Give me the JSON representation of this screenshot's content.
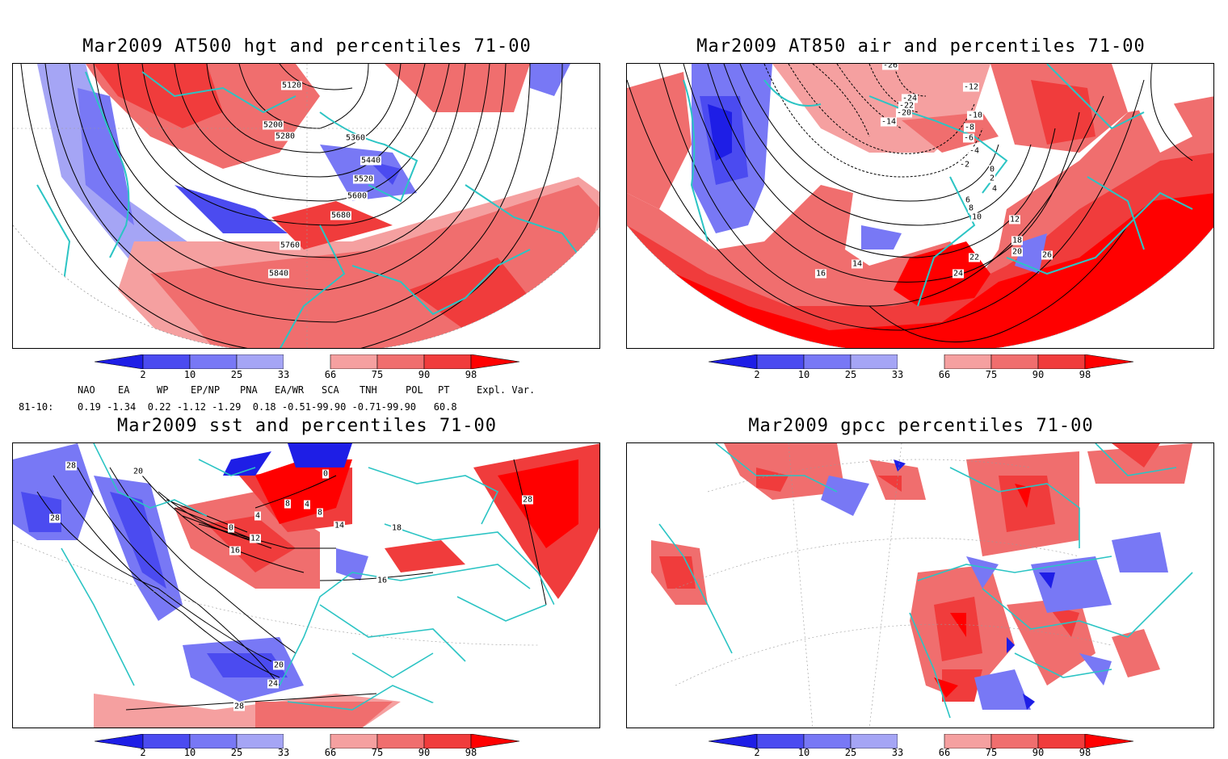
{
  "panels": [
    {
      "id": "hgt",
      "title": "Mar2009 AT500 hgt and percentiles 71-00",
      "contour_labels": [
        "5120",
        "5200",
        "5280",
        "5360",
        "5440",
        "5520",
        "5600",
        "5680",
        "5760",
        "5840"
      ]
    },
    {
      "id": "air",
      "title": "Mar2009 AT850 air and percentiles 71-00",
      "contour_labels": [
        "-26",
        "-24",
        "-22",
        "-20",
        "-14",
        "-12",
        "-10",
        "-8",
        "-6",
        "-4",
        "-2",
        "0",
        "2",
        "4",
        "6",
        "8",
        "10",
        "12",
        "14",
        "16",
        "18",
        "20",
        "22",
        "24",
        "26"
      ]
    },
    {
      "id": "sst",
      "title": "Mar2009 sst and percentiles 71-00",
      "contour_labels": [
        "28",
        "20",
        "28",
        "0",
        "4",
        "8",
        "12",
        "16",
        "0",
        "4",
        "8",
        "14",
        "18",
        "16",
        "20",
        "24",
        "28",
        "28"
      ]
    },
    {
      "id": "gpcc",
      "title": "Mar2009 gpcc percentiles 71-00",
      "contour_labels": []
    }
  ],
  "colorbar": {
    "labels": [
      "2",
      "10",
      "25",
      "33",
      "66",
      "75",
      "90",
      "98"
    ],
    "colors": {
      "dark_blue": "#1e1ee6",
      "mid_blue": "#4b4bf0",
      "light_blue": "#7878f5",
      "pale_blue": "#a5a5f5",
      "pale_red": "#f5a0a0",
      "light_red": "#f06e6e",
      "mid_red": "#f03c3c",
      "dark_red": "#ff0000"
    }
  },
  "indices": {
    "headers": [
      "NAO",
      "EA",
      "WP",
      "EP/NP",
      "PNA",
      "EA/WR",
      "SCA",
      "TNH",
      "POL",
      "PT",
      "Expl. Var."
    ],
    "row_label": "81-10:",
    "values": "0.19 -1.34  0.22 -1.12 -1.29  0.18 -0.51-99.90 -0.71-99.90   60.8"
  },
  "map_colors": {
    "coast": "#2bc4c4",
    "contour": "#000000",
    "grid": "#999999"
  }
}
